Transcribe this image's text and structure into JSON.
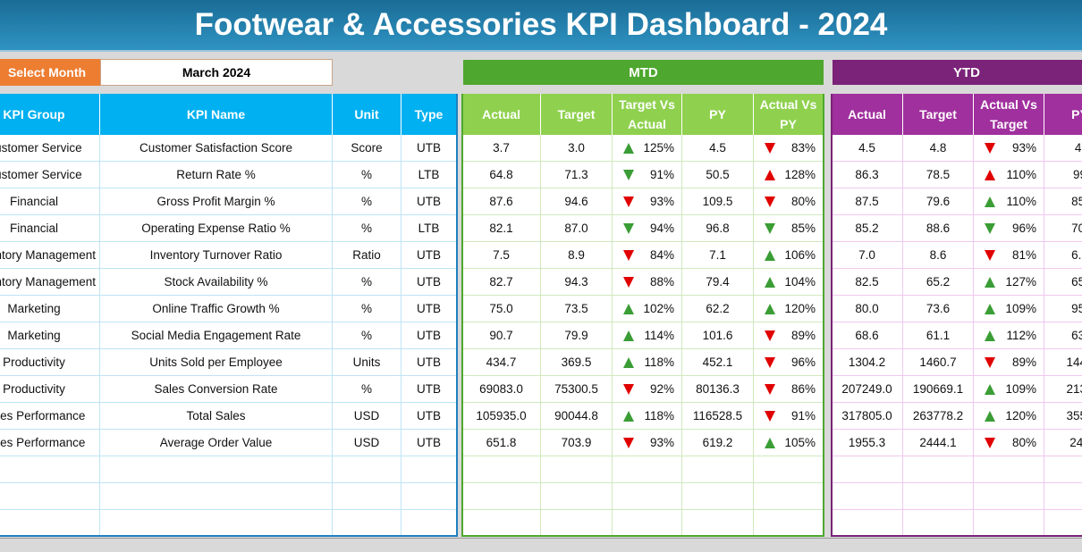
{
  "title": "Footwear & Accessories KPI Dashboard - 2024",
  "select_month": {
    "label": "Select Month",
    "value": "March 2024"
  },
  "kpi_columns": [
    "KPI Group",
    "KPI Name",
    "Unit",
    "Type"
  ],
  "mtd": {
    "title": "MTD",
    "columns": [
      "Actual",
      "Target",
      "Target Vs Actual",
      "PY",
      "Actual Vs PY"
    ]
  },
  "ytd": {
    "title": "YTD",
    "columns": [
      "Actual",
      "Target",
      "Actual Vs Target",
      "PY"
    ]
  },
  "rows": [
    {
      "kpi": [
        "Customer Service",
        "Customer Satisfaction Score",
        "Score",
        "UTB"
      ],
      "mtd": [
        "3.7",
        "3.0",
        {
          "arrow": "up",
          "color": "green",
          "text": "125%"
        },
        "4.5",
        {
          "arrow": "down",
          "color": "red",
          "text": "83%"
        }
      ],
      "ytd": [
        "4.5",
        "4.8",
        {
          "arrow": "down",
          "color": "red",
          "text": "93%"
        },
        "4."
      ]
    },
    {
      "kpi": [
        "Customer Service",
        "Return Rate %",
        "%",
        "LTB"
      ],
      "mtd": [
        "64.8",
        "71.3",
        {
          "arrow": "down",
          "color": "green",
          "text": "91%"
        },
        "50.5",
        {
          "arrow": "up",
          "color": "red",
          "text": "128%"
        }
      ],
      "ytd": [
        "86.3",
        "78.5",
        {
          "arrow": "up",
          "color": "red",
          "text": "110%"
        },
        "99"
      ]
    },
    {
      "kpi": [
        "Financial",
        "Gross Profit Margin %",
        "%",
        "UTB"
      ],
      "mtd": [
        "87.6",
        "94.6",
        {
          "arrow": "down",
          "color": "red",
          "text": "93%"
        },
        "109.5",
        {
          "arrow": "down",
          "color": "red",
          "text": "80%"
        }
      ],
      "ytd": [
        "87.5",
        "79.6",
        {
          "arrow": "up",
          "color": "green",
          "text": "110%"
        },
        "85."
      ]
    },
    {
      "kpi": [
        "Financial",
        "Operating Expense Ratio %",
        "%",
        "LTB"
      ],
      "mtd": [
        "82.1",
        "87.0",
        {
          "arrow": "down",
          "color": "green",
          "text": "94%"
        },
        "96.8",
        {
          "arrow": "down",
          "color": "green",
          "text": "85%"
        }
      ],
      "ytd": [
        "85.2",
        "88.6",
        {
          "arrow": "down",
          "color": "green",
          "text": "96%"
        },
        "70."
      ]
    },
    {
      "kpi": [
        "Inventory Management",
        "Inventory Turnover Ratio",
        "Ratio",
        "UTB"
      ],
      "mtd": [
        "7.5",
        "8.9",
        {
          "arrow": "down",
          "color": "red",
          "text": "84%"
        },
        "7.1",
        {
          "arrow": "up",
          "color": "green",
          "text": "106%"
        }
      ],
      "ytd": [
        "7.0",
        "8.6",
        {
          "arrow": "down",
          "color": "red",
          "text": "81%"
        },
        "6.8"
      ]
    },
    {
      "kpi": [
        "Inventory Management",
        "Stock Availability %",
        "%",
        "UTB"
      ],
      "mtd": [
        "82.7",
        "94.3",
        {
          "arrow": "down",
          "color": "red",
          "text": "88%"
        },
        "79.4",
        {
          "arrow": "up",
          "color": "green",
          "text": "104%"
        }
      ],
      "ytd": [
        "82.5",
        "65.2",
        {
          "arrow": "up",
          "color": "green",
          "text": "127%"
        },
        "65."
      ]
    },
    {
      "kpi": [
        "Marketing",
        "Online Traffic Growth %",
        "%",
        "UTB"
      ],
      "mtd": [
        "75.0",
        "73.5",
        {
          "arrow": "up",
          "color": "green",
          "text": "102%"
        },
        "62.2",
        {
          "arrow": "up",
          "color": "green",
          "text": "120%"
        }
      ],
      "ytd": [
        "80.0",
        "73.6",
        {
          "arrow": "up",
          "color": "green",
          "text": "109%"
        },
        "95."
      ]
    },
    {
      "kpi": [
        "Marketing",
        "Social Media Engagement Rate",
        "%",
        "UTB"
      ],
      "mtd": [
        "90.7",
        "79.9",
        {
          "arrow": "up",
          "color": "green",
          "text": "114%"
        },
        "101.6",
        {
          "arrow": "down",
          "color": "red",
          "text": "89%"
        }
      ],
      "ytd": [
        "68.6",
        "61.1",
        {
          "arrow": "up",
          "color": "green",
          "text": "112%"
        },
        "63."
      ]
    },
    {
      "kpi": [
        "Productivity",
        "Units Sold per Employee",
        "Units",
        "UTB"
      ],
      "mtd": [
        "434.7",
        "369.5",
        {
          "arrow": "up",
          "color": "green",
          "text": "118%"
        },
        "452.1",
        {
          "arrow": "down",
          "color": "red",
          "text": "96%"
        }
      ],
      "ytd": [
        "1304.2",
        "1460.7",
        {
          "arrow": "down",
          "color": "red",
          "text": "89%"
        },
        "1447"
      ]
    },
    {
      "kpi": [
        "Productivity",
        "Sales Conversion Rate",
        "%",
        "UTB"
      ],
      "mtd": [
        "69083.0",
        "75300.5",
        {
          "arrow": "down",
          "color": "red",
          "text": "92%"
        },
        "80136.3",
        {
          "arrow": "down",
          "color": "red",
          "text": "86%"
        }
      ],
      "ytd": [
        "207249.0",
        "190669.1",
        {
          "arrow": "up",
          "color": "green",
          "text": "109%"
        },
        "2134"
      ]
    },
    {
      "kpi": [
        "Sales Performance",
        "Total Sales",
        "USD",
        "UTB"
      ],
      "mtd": [
        "105935.0",
        "90044.8",
        {
          "arrow": "up",
          "color": "green",
          "text": "118%"
        },
        "116528.5",
        {
          "arrow": "down",
          "color": "red",
          "text": "91%"
        }
      ],
      "ytd": [
        "317805.0",
        "263778.2",
        {
          "arrow": "up",
          "color": "green",
          "text": "120%"
        },
        "3559"
      ]
    },
    {
      "kpi": [
        "Sales Performance",
        "Average Order Value",
        "USD",
        "UTB"
      ],
      "mtd": [
        "651.8",
        "703.9",
        {
          "arrow": "down",
          "color": "red",
          "text": "93%"
        },
        "619.2",
        {
          "arrow": "up",
          "color": "green",
          "text": "105%"
        }
      ],
      "ytd": [
        "1955.3",
        "2444.1",
        {
          "arrow": "down",
          "color": "red",
          "text": "80%"
        },
        "240"
      ]
    }
  ]
}
